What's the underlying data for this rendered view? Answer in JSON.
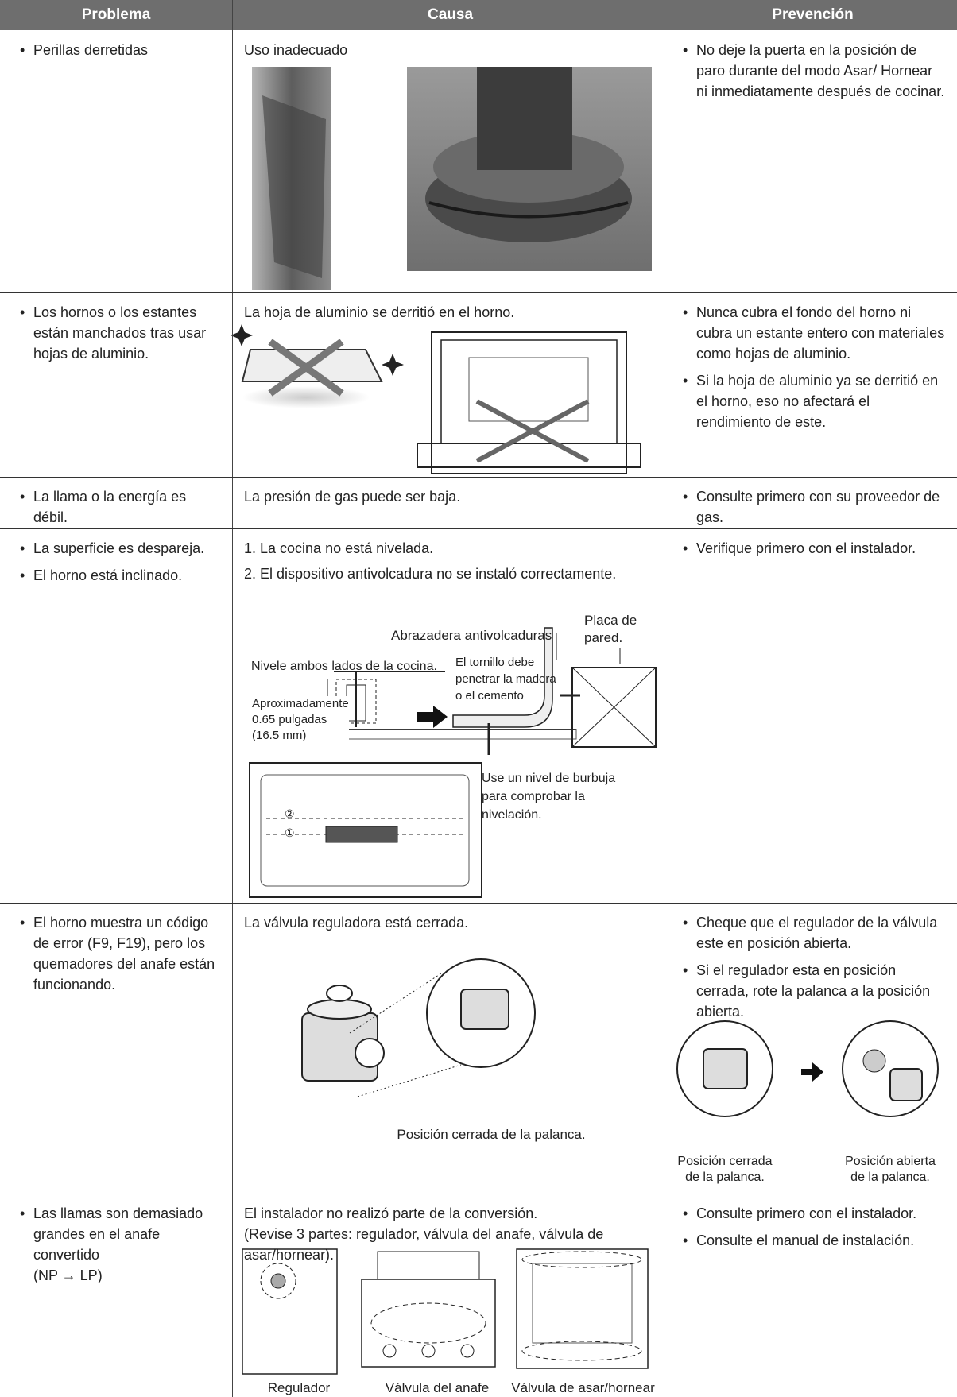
{
  "table": {
    "headers": [
      "Problema",
      "Causa",
      "Prevención"
    ],
    "rows": [
      {
        "problem": [
          "Perillas derretidas"
        ],
        "cause": [
          "Uso inadecuado"
        ],
        "prevention": [
          "No deje la puerta en la posición de paro durante del modo Asar/ Hornear ni inmediatamente después de cocinar."
        ]
      },
      {
        "problem": [
          "Los hornos o los estantes están manchados tras usar hojas de aluminio."
        ],
        "cause": [
          "La hoja de aluminio se derritió en el horno."
        ],
        "prevention": [
          "Nunca cubra el fondo del horno ni cubra un estante entero con materiales como hojas de aluminio.",
          "Si la hoja de aluminio ya se derritió en el horno, eso no afectará el rendimiento de este."
        ]
      },
      {
        "problem": [
          "La llama o la energía es débil."
        ],
        "cause": [
          "La presión de gas puede ser baja."
        ],
        "prevention": [
          "Consulte primero con su proveedor de gas."
        ]
      },
      {
        "problem": [
          "La superficie es despareja.",
          "El horno está inclinado."
        ],
        "cause": [
          "1. La cocina no está nivelada.",
          "2. El dispositivo antivolcadura no se instaló correctamente."
        ],
        "figure_labels": {
          "wall_plate": "Placa de\npared.",
          "bracket": "Abrazadera antivolcaduras",
          "level_sides": "Nivele ambos lados de la cocina.",
          "screw": "El tornillo debe\npenetrar la madera\no el cemento",
          "height": "Aproximadamente\n0.65 pulgadas\n(16.5 mm)",
          "bubble": "Use un nivel de burbuja\npara comprobar la\nnivelación.",
          "rack_2": "②",
          "rack_1": "①"
        },
        "prevention": [
          "Verifique primero con el instalador."
        ]
      },
      {
        "problem": [
          "El horno muestra un código de error (F9, F19), pero los quemadores del anafe están funcionando."
        ],
        "cause": [
          "La válvula reguladora está cerrada."
        ],
        "figure_labels": {
          "closed": "Posición cerrada de la palanca."
        },
        "prevention": [
          "Cheque que el regulador de la válvula este en posición abierta.",
          "Si el regulador esta en posición cerrada, rote la palanca a la posición abierta."
        ],
        "prevention_captions": [
          "Posición cerrada\nde la palanca.",
          "Posición abierta\nde la palanca."
        ]
      },
      {
        "problem": [
          "Las llamas son demasiado grandes en el anafe convertido\n(NP → LP)"
        ],
        "cause": [
          "El instalador no realizó parte de la conversión.\n(Revise 3 partes: regulador, válvula del anafe, válvula de asar/hornear)."
        ],
        "figure_labels": [
          "Regulador",
          "Válvula del anafe",
          "Válvula de asar/hornear"
        ],
        "prevention": [
          "Consulte primero con el instalador.",
          "Consulte el manual de instalación."
        ]
      }
    ]
  }
}
